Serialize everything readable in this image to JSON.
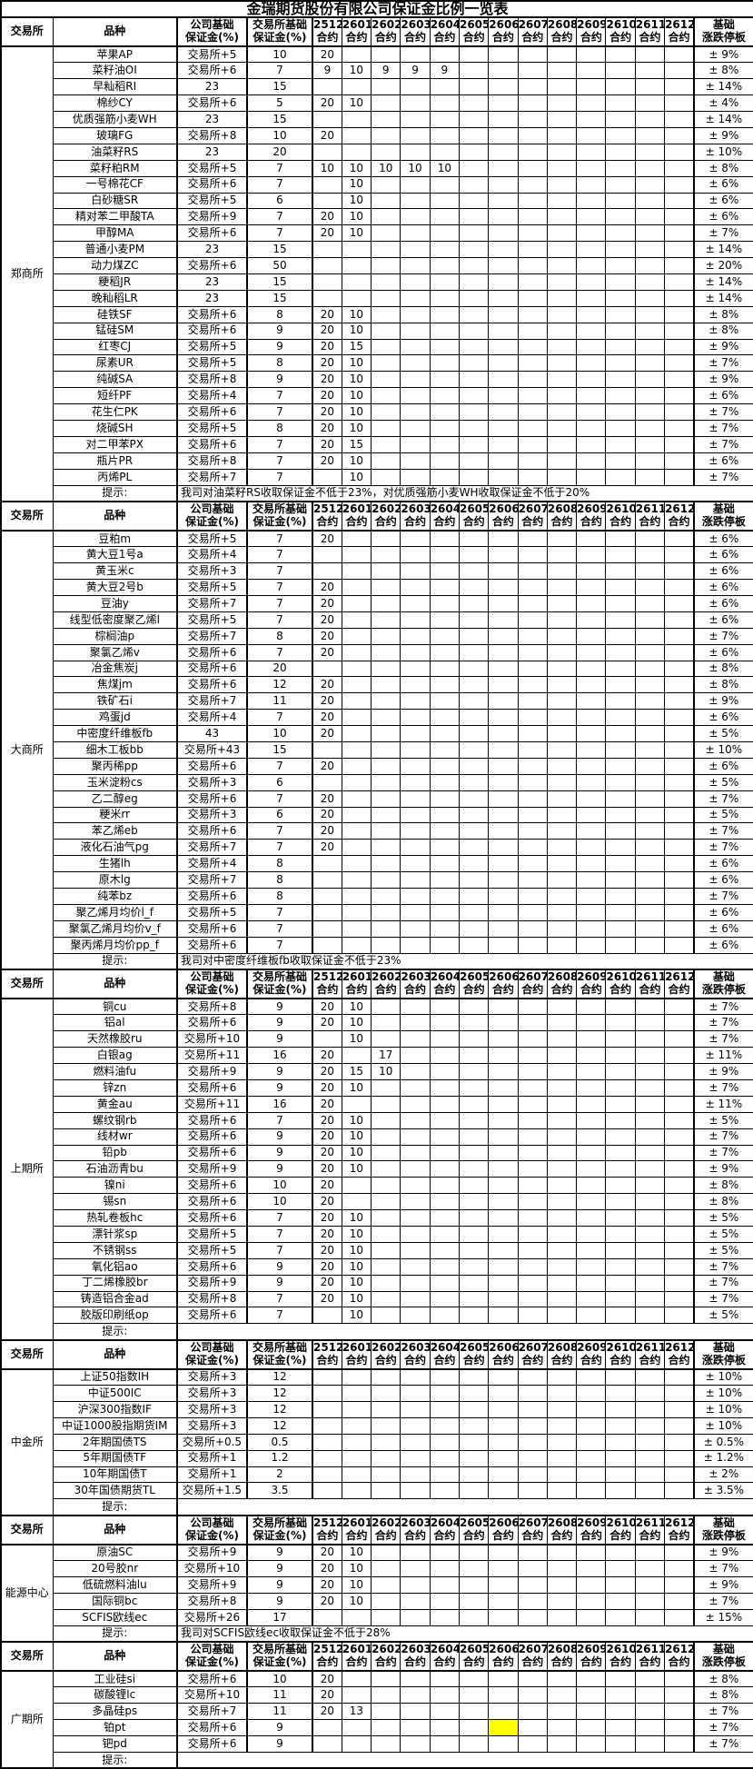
{
  "title": "金瑞期货股份有限公司保证金比例一览表",
  "headers": {
    "exchange": "交易所",
    "product": "品种",
    "company_base": "公司基础\n保证金(%)",
    "exchange_base": "交易所基础\n保证金(%)",
    "contract_suffix": "合约",
    "contracts": [
      "2512",
      "2601",
      "2602",
      "2603",
      "2604",
      "2605",
      "2606",
      "2607",
      "2608",
      "2609",
      "2610",
      "2611",
      "2612"
    ],
    "limit": "基础\n涨跌停板"
  },
  "tip_label": "提示:",
  "highlight_color": "#FFFF00",
  "sections": [
    {
      "exchange": "郑商所",
      "tip": "我司对油菜籽RS收取保证金不低于23%，对优质强筋小麦WH收取保证金不低于20%",
      "products": [
        {
          "name": "苹果AP",
          "company": "交易所+5",
          "base": "10",
          "values": {
            "2512": "20"
          },
          "limit": "± 9%"
        },
        {
          "name": "菜籽油OI",
          "company": "交易所+6",
          "base": "7",
          "values": {
            "2512": "9",
            "2601": "10",
            "2602": "9",
            "2603": "9",
            "2604": "9"
          },
          "limit": "± 8%"
        },
        {
          "name": "早籼稻RI",
          "company": "23",
          "base": "15",
          "values": {},
          "limit": "± 14%"
        },
        {
          "name": "棉纱CY",
          "company": "交易所+6",
          "base": "5",
          "values": {
            "2512": "20",
            "2601": "10"
          },
          "limit": "± 4%"
        },
        {
          "name": "优质强筋小麦WH",
          "company": "23",
          "base": "15",
          "values": {},
          "limit": "± 14%"
        },
        {
          "name": "玻璃FG",
          "company": "交易所+8",
          "base": "10",
          "values": {
            "2512": "20"
          },
          "limit": "± 9%"
        },
        {
          "name": "油菜籽RS",
          "company": "23",
          "base": "20",
          "values": {},
          "limit": "± 10%"
        },
        {
          "name": "菜籽粕RM",
          "company": "交易所+5",
          "base": "7",
          "values": {
            "2512": "10",
            "2601": "10",
            "2602": "10",
            "2603": "10",
            "2604": "10"
          },
          "limit": "± 8%"
        },
        {
          "name": "一号棉花CF",
          "company": "交易所+6",
          "base": "7",
          "values": {
            "2601": "10"
          },
          "limit": "± 6%"
        },
        {
          "name": "白砂糖SR",
          "company": "交易所+5",
          "base": "6",
          "values": {
            "2601": "10"
          },
          "limit": "± 6%"
        },
        {
          "name": "精对苯二甲酸TA",
          "company": "交易所+9",
          "base": "7",
          "values": {
            "2512": "20",
            "2601": "10"
          },
          "limit": "± 6%"
        },
        {
          "name": "甲醇MA",
          "company": "交易所+6",
          "base": "7",
          "values": {
            "2512": "20",
            "2601": "10"
          },
          "limit": "± 7%"
        },
        {
          "name": "普通小麦PM",
          "company": "23",
          "base": "15",
          "values": {},
          "limit": "± 14%"
        },
        {
          "name": "动力煤ZC",
          "company": "交易所+6",
          "base": "50",
          "values": {},
          "limit": "± 20%"
        },
        {
          "name": "粳稻JR",
          "company": "23",
          "base": "15",
          "values": {},
          "limit": "± 14%"
        },
        {
          "name": "晚籼稻LR",
          "company": "23",
          "base": "15",
          "values": {},
          "limit": "± 14%"
        },
        {
          "name": "硅铁SF",
          "company": "交易所+6",
          "base": "8",
          "values": {
            "2512": "20",
            "2601": "10"
          },
          "limit": "± 8%"
        },
        {
          "name": "锰硅SM",
          "company": "交易所+6",
          "base": "9",
          "values": {
            "2512": "20",
            "2601": "10"
          },
          "limit": "± 8%"
        },
        {
          "name": "红枣CJ",
          "company": "交易所+5",
          "base": "9",
          "values": {
            "2512": "20",
            "2601": "15"
          },
          "limit": "± 9%"
        },
        {
          "name": "尿素UR",
          "company": "交易所+5",
          "base": "8",
          "values": {
            "2512": "20",
            "2601": "10"
          },
          "limit": "± 7%"
        },
        {
          "name": "纯碱SA",
          "company": "交易所+8",
          "base": "9",
          "values": {
            "2512": "20",
            "2601": "10"
          },
          "limit": "± 9%"
        },
        {
          "name": "短纤PF",
          "company": "交易所+4",
          "base": "7",
          "values": {
            "2512": "20",
            "2601": "10"
          },
          "limit": "± 6%"
        },
        {
          "name": "花生仁PK",
          "company": "交易所+6",
          "base": "7",
          "values": {
            "2512": "20",
            "2601": "10"
          },
          "limit": "± 7%"
        },
        {
          "name": "烧碱SH",
          "company": "交易所+5",
          "base": "8",
          "values": {
            "2512": "20",
            "2601": "10"
          },
          "limit": "± 7%"
        },
        {
          "name": "对二甲苯PX",
          "company": "交易所+6",
          "base": "7",
          "values": {
            "2512": "20",
            "2601": "15"
          },
          "limit": "± 7%"
        },
        {
          "name": "瓶片PR",
          "company": "交易所+8",
          "base": "7",
          "values": {
            "2512": "20",
            "2601": "10"
          },
          "limit": "± 6%"
        },
        {
          "name": "丙烯PL",
          "company": "交易所+7",
          "base": "7",
          "values": {
            "2601": "10"
          },
          "limit": "± 7%"
        }
      ]
    },
    {
      "exchange": "大商所",
      "tip": "我司对中密度纤维板fb收取保证金不低于23%",
      "products": [
        {
          "name": "豆粕m",
          "company": "交易所+5",
          "base": "7",
          "values": {
            "2512": "20"
          },
          "limit": "± 6%"
        },
        {
          "name": "黄大豆1号a",
          "company": "交易所+4",
          "base": "7",
          "values": {},
          "limit": "± 6%"
        },
        {
          "name": "黄玉米c",
          "company": "交易所+3",
          "base": "7",
          "values": {},
          "limit": "± 6%"
        },
        {
          "name": "黄大豆2号b",
          "company": "交易所+5",
          "base": "7",
          "values": {
            "2512": "20"
          },
          "limit": "± 6%"
        },
        {
          "name": "豆油y",
          "company": "交易所+7",
          "base": "7",
          "values": {
            "2512": "20"
          },
          "limit": "± 6%"
        },
        {
          "name": "线型低密度聚乙烯l",
          "company": "交易所+5",
          "base": "7",
          "values": {
            "2512": "20"
          },
          "limit": "± 6%"
        },
        {
          "name": "棕榈油p",
          "company": "交易所+7",
          "base": "8",
          "values": {
            "2512": "20"
          },
          "limit": "± 7%"
        },
        {
          "name": "聚氯乙烯v",
          "company": "交易所+6",
          "base": "7",
          "values": {
            "2512": "20"
          },
          "limit": "± 6%"
        },
        {
          "name": "冶金焦炭j",
          "company": "交易所+6",
          "base": "20",
          "values": {},
          "limit": "± 8%"
        },
        {
          "name": "焦煤jm",
          "company": "交易所+6",
          "base": "12",
          "values": {
            "2512": "20"
          },
          "limit": "± 8%"
        },
        {
          "name": "铁矿石i",
          "company": "交易所+7",
          "base": "11",
          "values": {
            "2512": "20"
          },
          "limit": "± 9%"
        },
        {
          "name": "鸡蛋jd",
          "company": "交易所+4",
          "base": "7",
          "values": {
            "2512": "20"
          },
          "limit": "± 6%"
        },
        {
          "name": "中密度纤维板fb",
          "company": "43",
          "base": "10",
          "values": {
            "2512": "20"
          },
          "limit": "± 5%"
        },
        {
          "name": "细木工板bb",
          "company": "交易所+43",
          "base": "15",
          "values": {},
          "limit": "± 10%"
        },
        {
          "name": "聚丙稀pp",
          "company": "交易所+6",
          "base": "7",
          "values": {
            "2512": "20"
          },
          "limit": "± 6%"
        },
        {
          "name": "玉米淀粉cs",
          "company": "交易所+3",
          "base": "6",
          "values": {},
          "limit": "± 5%"
        },
        {
          "name": "乙二醇eg",
          "company": "交易所+6",
          "base": "7",
          "values": {
            "2512": "20"
          },
          "limit": "± 7%"
        },
        {
          "name": "粳米rr",
          "company": "交易所+3",
          "base": "6",
          "values": {
            "2512": "20"
          },
          "limit": "± 5%"
        },
        {
          "name": "苯乙烯eb",
          "company": "交易所+6",
          "base": "7",
          "values": {
            "2512": "20"
          },
          "limit": "± 7%"
        },
        {
          "name": "液化石油气pg",
          "company": "交易所+7",
          "base": "7",
          "values": {
            "2512": "20"
          },
          "limit": "± 7%"
        },
        {
          "name": "生猪lh",
          "company": "交易所+4",
          "base": "8",
          "values": {},
          "limit": "± 6%"
        },
        {
          "name": "原木lg",
          "company": "交易所+7",
          "base": "8",
          "values": {},
          "limit": "± 6%"
        },
        {
          "name": "纯苯bz",
          "company": "交易所+6",
          "base": "8",
          "values": {},
          "limit": "± 7%"
        },
        {
          "name": "聚乙烯月均价l_f",
          "company": "交易所+5",
          "base": "7",
          "values": {},
          "limit": "± 6%"
        },
        {
          "name": "聚氯乙烯月均价v_f",
          "company": "交易所+6",
          "base": "7",
          "values": {},
          "limit": "± 6%"
        },
        {
          "name": "聚丙烯月均价pp_f",
          "company": "交易所+6",
          "base": "7",
          "values": {},
          "limit": "± 6%"
        }
      ]
    },
    {
      "exchange": "上期所",
      "tip": "",
      "products": [
        {
          "name": "铜cu",
          "company": "交易所+8",
          "base": "9",
          "values": {
            "2512": "20",
            "2601": "10"
          },
          "limit": "± 7%"
        },
        {
          "name": "铝al",
          "company": "交易所+6",
          "base": "9",
          "values": {
            "2512": "20",
            "2601": "10"
          },
          "limit": "± 7%"
        },
        {
          "name": "天然橡胶ru",
          "company": "交易所+10",
          "base": "9",
          "values": {
            "2601": "10"
          },
          "limit": "± 7%"
        },
        {
          "name": "白银ag",
          "company": "交易所+11",
          "base": "16",
          "values": {
            "2512": "20",
            "2602": "17"
          },
          "limit": "± 11%"
        },
        {
          "name": "燃料油fu",
          "company": "交易所+9",
          "base": "9",
          "values": {
            "2512": "20",
            "2601": "15",
            "2602": "10"
          },
          "limit": "± 9%"
        },
        {
          "name": "锌zn",
          "company": "交易所+6",
          "base": "9",
          "values": {
            "2512": "20",
            "2601": "10"
          },
          "limit": "± 7%"
        },
        {
          "name": "黄金au",
          "company": "交易所+11",
          "base": "16",
          "values": {
            "2512": "20"
          },
          "limit": "± 11%"
        },
        {
          "name": "螺纹钢rb",
          "company": "交易所+6",
          "base": "7",
          "values": {
            "2512": "20",
            "2601": "10"
          },
          "limit": "± 5%"
        },
        {
          "name": "线材wr",
          "company": "交易所+6",
          "base": "9",
          "values": {
            "2512": "20",
            "2601": "10"
          },
          "limit": "± 7%"
        },
        {
          "name": "铅pb",
          "company": "交易所+6",
          "base": "9",
          "values": {
            "2512": "20",
            "2601": "10"
          },
          "limit": "± 7%"
        },
        {
          "name": "石油沥青bu",
          "company": "交易所+9",
          "base": "9",
          "values": {
            "2512": "20",
            "2601": "10"
          },
          "limit": "± 9%"
        },
        {
          "name": "镍ni",
          "company": "交易所+6",
          "base": "10",
          "values": {
            "2512": "20"
          },
          "limit": "± 8%"
        },
        {
          "name": "锡sn",
          "company": "交易所+6",
          "base": "10",
          "values": {
            "2512": "20"
          },
          "limit": "± 8%"
        },
        {
          "name": "热轧卷板hc",
          "company": "交易所+6",
          "base": "7",
          "values": {
            "2512": "20",
            "2601": "10"
          },
          "limit": "± 5%"
        },
        {
          "name": "漂针浆sp",
          "company": "交易所+5",
          "base": "7",
          "values": {
            "2512": "20",
            "2601": "10"
          },
          "limit": "± 5%"
        },
        {
          "name": "不锈钢ss",
          "company": "交易所+5",
          "base": "7",
          "values": {
            "2512": "20",
            "2601": "10"
          },
          "limit": "± 5%"
        },
        {
          "name": "氧化铝ao",
          "company": "交易所+6",
          "base": "9",
          "values": {
            "2512": "20",
            "2601": "10"
          },
          "limit": "± 7%"
        },
        {
          "name": "丁二烯橡胶br",
          "company": "交易所+9",
          "base": "9",
          "values": {
            "2512": "20",
            "2601": "10"
          },
          "limit": "± 7%"
        },
        {
          "name": "铸造铝合金ad",
          "company": "交易所+8",
          "base": "7",
          "values": {
            "2512": "20",
            "2601": "10"
          },
          "limit": "± 7%"
        },
        {
          "name": "胶版印刷纸op",
          "company": "交易所+6",
          "base": "7",
          "values": {
            "2601": "10"
          },
          "limit": "± 5%"
        }
      ]
    },
    {
      "exchange": "中金所",
      "tip": "",
      "products": [
        {
          "name": "上证50指数IH",
          "company": "交易所+3",
          "base": "12",
          "values": {},
          "limit": "± 10%"
        },
        {
          "name": "中证500IC",
          "company": "交易所+3",
          "base": "12",
          "values": {},
          "limit": "± 10%"
        },
        {
          "name": "沪深300指数IF",
          "company": "交易所+3",
          "base": "12",
          "values": {},
          "limit": "± 10%"
        },
        {
          "name": "中证1000股指期货IM",
          "company": "交易所+3",
          "base": "12",
          "values": {},
          "limit": "± 10%"
        },
        {
          "name": "2年期国债TS",
          "company": "交易所+0.5",
          "base": "0.5",
          "values": {},
          "limit": "± 0.5%"
        },
        {
          "name": "5年期国债TF",
          "company": "交易所+1",
          "base": "1.2",
          "values": {},
          "limit": "± 1.2%"
        },
        {
          "name": "10年期国债T",
          "company": "交易所+1",
          "base": "2",
          "values": {},
          "limit": "± 2%"
        },
        {
          "name": "30年国债期货TL",
          "company": "交易所+1.5",
          "base": "3.5",
          "values": {},
          "limit": "± 3.5%"
        }
      ]
    },
    {
      "exchange": "能源中心",
      "tip": "我司对SCFIS欧线ec收取保证金不低于28%",
      "products": [
        {
          "name": "原油SC",
          "company": "交易所+9",
          "base": "9",
          "values": {
            "2512": "20",
            "2601": "10"
          },
          "limit": "± 9%"
        },
        {
          "name": "20号胶nr",
          "company": "交易所+10",
          "base": "9",
          "values": {
            "2512": "20",
            "2601": "10"
          },
          "limit": "± 7%"
        },
        {
          "name": "低硫燃料油lu",
          "company": "交易所+9",
          "base": "9",
          "values": {
            "2512": "20",
            "2601": "10"
          },
          "limit": "± 9%"
        },
        {
          "name": "国际铜bc",
          "company": "交易所+8",
          "base": "9",
          "values": {
            "2512": "20",
            "2601": "10"
          },
          "limit": "± 7%"
        },
        {
          "name": "SCFIS欧线ec",
          "company": "交易所+26",
          "base": "17",
          "values": {},
          "limit": "± 15%"
        }
      ]
    },
    {
      "exchange": "广期所",
      "tip": "",
      "products": [
        {
          "name": "工业硅si",
          "company": "交易所+6",
          "base": "10",
          "values": {
            "2512": "20"
          },
          "limit": "± 8%"
        },
        {
          "name": "碳酸锂lc",
          "company": "交易所+10",
          "base": "11",
          "values": {
            "2512": "20"
          },
          "limit": "± 8%"
        },
        {
          "name": "多晶硅ps",
          "company": "交易所+7",
          "base": "11",
          "values": {
            "2512": "20",
            "2601": "13"
          },
          "limit": "± 7%"
        },
        {
          "name": "铂pt",
          "company": "交易所+6",
          "base": "9",
          "values": {},
          "highlight": [
            "2606"
          ],
          "limit": "± 7%"
        },
        {
          "name": "钯pd",
          "company": "交易所+6",
          "base": "9",
          "values": {},
          "limit": "± 7%"
        }
      ]
    }
  ]
}
